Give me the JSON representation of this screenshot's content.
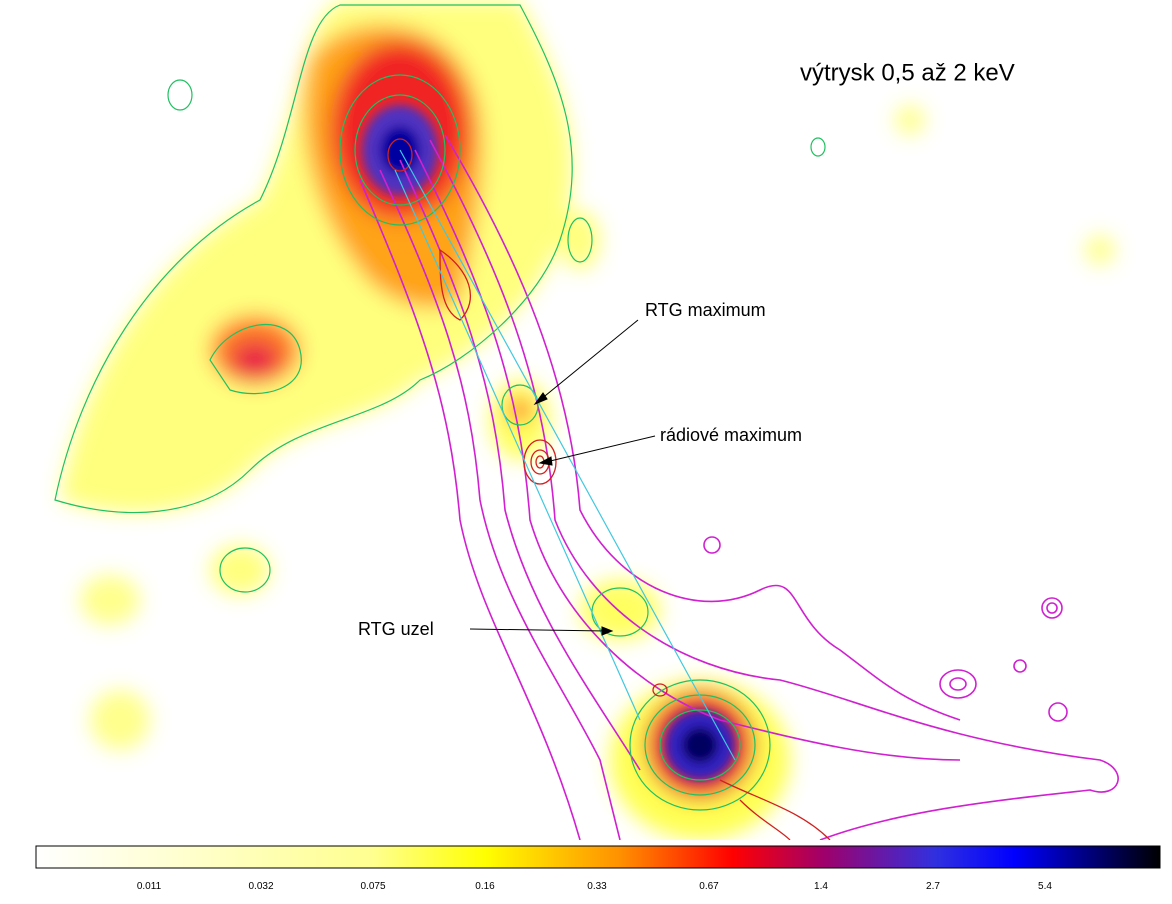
{
  "title": "výtrysk 0,5 až 2 keV",
  "annotations": [
    "RTG maximum",
    "rádiové maximum",
    "RTG uzel"
  ],
  "colorbar": {
    "ticks": [
      "0.011",
      "0.032",
      "0.075",
      "0.16",
      "0.33",
      "0.67",
      "1.4",
      "2.7",
      "5.4"
    ]
  }
}
